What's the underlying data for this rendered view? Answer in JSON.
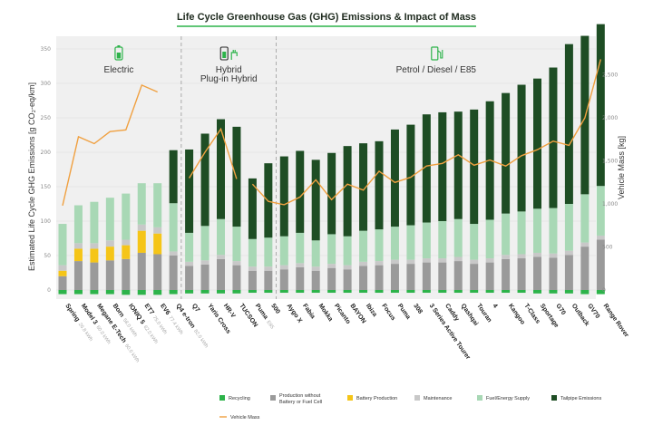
{
  "chart_data": {
    "type": "bar",
    "title": "Life Cycle Greenhouse Gas (GHG) Emissions & Impact of Mass",
    "ylabel": "Estimated Life Cycle GHG Emissions [g CO₂-eq/km]",
    "y2label": "Vehicle Mass [kg]",
    "ylim": [
      0,
      380
    ],
    "y_ticks": [
      "0",
      "50",
      "100",
      "150",
      "200",
      "250",
      "300",
      "350"
    ],
    "y2lim": [
      0,
      2800
    ],
    "y2_ticks": [
      "0",
      "500",
      "1,000",
      "1,500",
      "2,000",
      "2,500"
    ],
    "grid": true,
    "groups": [
      {
        "label": "Electric",
        "icon": "battery-icon",
        "first": 0,
        "last": 7
      },
      {
        "label": "Hybrid\nPlug-in Hybrid",
        "icon": "plug-icon",
        "first": 8,
        "last": 13
      },
      {
        "label": "Petrol / Diesel / E85",
        "icon": "fuel-pump-icon",
        "first": 14,
        "last": 35
      }
    ],
    "categories": [
      {
        "name": "Spring",
        "sub": "26.8 kWh"
      },
      {
        "name": "Model 3",
        "sub": "60.0 kWh"
      },
      {
        "name": "Megane E-Tech",
        "sub": "60.0 kWh"
      },
      {
        "name": "Born",
        "sub": "58.0 kWh"
      },
      {
        "name": "IONIQ 5",
        "sub": "62.0 kWh"
      },
      {
        "name": "ET7",
        "sub": "75.0 kWh"
      },
      {
        "name": "EV6",
        "sub": "77.4 kWh"
      },
      {
        "name": "Q4 e-tron",
        "sub": "82.0 kWh"
      },
      {
        "name": "Q7",
        "sub": ""
      },
      {
        "name": "Yaris Cross",
        "sub": ""
      },
      {
        "name": "HR-V",
        "sub": ""
      },
      {
        "name": "TUCSON",
        "sub": ""
      },
      {
        "name": "Puma",
        "sub": "E85"
      },
      {
        "name": "500",
        "sub": ""
      },
      {
        "name": "Aygo X",
        "sub": ""
      },
      {
        "name": "Fabia",
        "sub": ""
      },
      {
        "name": "Mokka",
        "sub": ""
      },
      {
        "name": "Picanto",
        "sub": ""
      },
      {
        "name": "BAYON",
        "sub": ""
      },
      {
        "name": "Ibiza",
        "sub": ""
      },
      {
        "name": "Focus",
        "sub": ""
      },
      {
        "name": "Puma",
        "sub": ""
      },
      {
        "name": "308",
        "sub": ""
      },
      {
        "name": "3 Series Active Tourer",
        "sub": ""
      },
      {
        "name": "Caddy",
        "sub": ""
      },
      {
        "name": "Qashqai",
        "sub": ""
      },
      {
        "name": "Touran",
        "sub": ""
      },
      {
        "name": "4",
        "sub": ""
      },
      {
        "name": "Kangoo",
        "sub": ""
      },
      {
        "name": "T-Class",
        "sub": ""
      },
      {
        "name": "Sportage",
        "sub": ""
      },
      {
        "name": "G70",
        "sub": ""
      },
      {
        "name": "Outback",
        "sub": ""
      },
      {
        "name": "GV70",
        "sub": ""
      },
      {
        "name": "Range Rover",
        "sub": ""
      }
    ],
    "series": [
      {
        "name": "Recycling",
        "color": "#2db34a",
        "values": [
          -6,
          -6,
          -6,
          -6,
          -7,
          -7,
          -7,
          -6,
          -5,
          -5,
          -5,
          -5,
          -4,
          -4,
          -4,
          -4,
          -4,
          -4,
          -4,
          -4,
          -4,
          -4,
          -4,
          -4,
          -4,
          -4,
          -4,
          -4,
          -4,
          -4,
          -5,
          -5,
          -5,
          -6,
          -6
        ]
      },
      {
        "name": "Production without Battery or Fuel Cell",
        "color": "#9a9a9a",
        "values": [
          20,
          42,
          40,
          43,
          45,
          54,
          52,
          50,
          35,
          37,
          45,
          36,
          28,
          28,
          30,
          33,
          28,
          32,
          30,
          35,
          36,
          38,
          38,
          40,
          40,
          42,
          38,
          40,
          45,
          46,
          48,
          47,
          51,
          63,
          73
        ]
      },
      {
        "name": "Battery Production",
        "color": "#f5c518",
        "values": [
          8,
          18,
          20,
          20,
          20,
          32,
          30,
          0,
          0,
          0,
          0,
          0,
          0,
          0,
          0,
          0,
          0,
          0,
          0,
          0,
          0,
          0,
          0,
          0,
          0,
          0,
          0,
          0,
          0,
          0,
          0,
          0,
          0,
          0,
          0
        ]
      },
      {
        "name": "Maintenance",
        "color": "#c8c8c8",
        "values": [
          8,
          8,
          8,
          9,
          8,
          9,
          9,
          6,
          6,
          6,
          6,
          6,
          6,
          6,
          6,
          6,
          6,
          6,
          6,
          6,
          6,
          6,
          6,
          6,
          6,
          6,
          6,
          6,
          6,
          6,
          6,
          6,
          6,
          6,
          6
        ]
      },
      {
        "name": "Fuel/Energy Supply",
        "color": "#a8d8b5",
        "values": [
          60,
          55,
          60,
          62,
          67,
          60,
          64,
          70,
          42,
          50,
          52,
          50,
          40,
          42,
          42,
          44,
          38,
          43,
          42,
          45,
          46,
          48,
          50,
          52,
          54,
          55,
          52,
          56,
          60,
          62,
          64,
          66,
          68,
          70,
          72
        ]
      },
      {
        "name": "Tailpipe Emissions",
        "color": "#1e4d24",
        "values": [
          0,
          0,
          0,
          0,
          0,
          0,
          0,
          77,
          121,
          134,
          145,
          145,
          88,
          108,
          116,
          119,
          117,
          118,
          131,
          127,
          128,
          141,
          146,
          157,
          158,
          156,
          166,
          172,
          175,
          184,
          189,
          204,
          232,
          230,
          235
        ]
      }
    ],
    "line": {
      "name": "Vehicle Mass",
      "color": "#f0a040",
      "values": [
        980,
        1780,
        1700,
        1840,
        1860,
        2380,
        2300,
        1910,
        1300,
        1600,
        1870,
        1290,
        1230,
        1030,
        990,
        1080,
        1280,
        1050,
        1230,
        1160,
        1380,
        1250,
        1310,
        1440,
        1470,
        1570,
        1450,
        1510,
        1440,
        1560,
        1630,
        1730,
        1680,
        2000,
        2680
      ]
    }
  }
}
